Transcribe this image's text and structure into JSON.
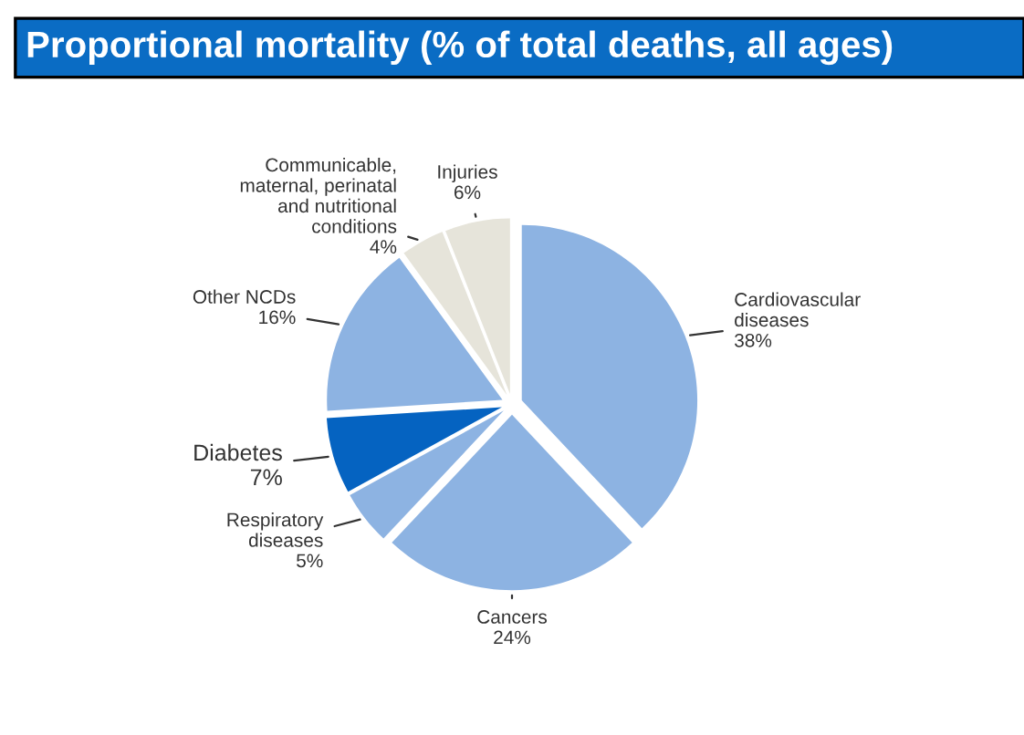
{
  "chart_data": {
    "type": "pie",
    "title": "Proportional mortality (% of total deaths, all ages)",
    "categories": [
      "Cardiovascular\ndiseases",
      "Cancers",
      "Respiratory\ndiseases",
      "Diabetes",
      "Other NCDs",
      "Communicable,\nmaternal, perinatal\nand nutritional\nconditions",
      "Injuries"
    ],
    "values": [
      38,
      24,
      5,
      7,
      16,
      4,
      6
    ],
    "value_labels": [
      "38%",
      "24%",
      "5%",
      "7%",
      "16%",
      "4%",
      "6%"
    ],
    "colors": [
      "#8db3e2",
      "#8db3e2",
      "#8db3e2",
      "#0563c1",
      "#8db3e2",
      "#e6e4da",
      "#e6e4da"
    ],
    "legend": false
  }
}
